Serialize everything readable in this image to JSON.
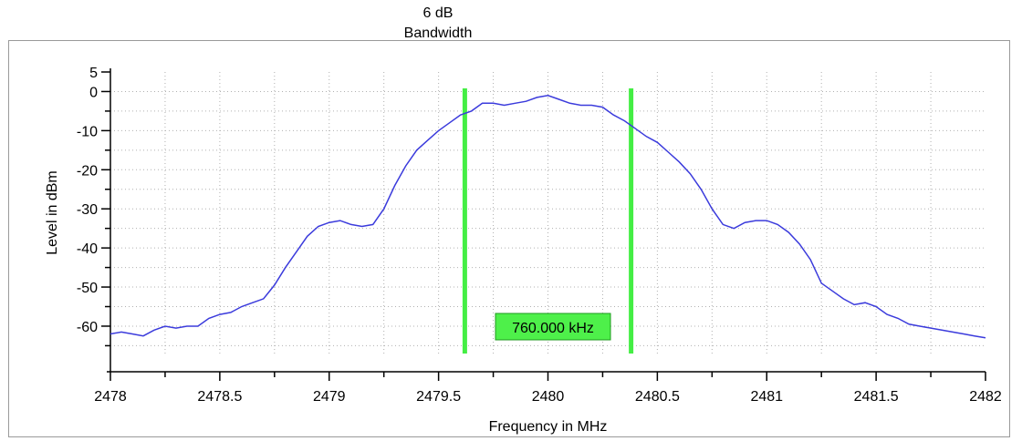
{
  "chart_data": {
    "type": "line",
    "title_line1": "6 dB",
    "title_line2": "Bandwidth",
    "xlabel": "Frequency in MHz",
    "ylabel": "Level in dBm",
    "xlim": [
      2478,
      2482
    ],
    "ylim": [
      -67,
      5
    ],
    "x_ticks": [
      2478,
      2478.5,
      2479,
      2479.5,
      2480,
      2480.5,
      2481,
      2481.5,
      2482
    ],
    "x_tick_labels": [
      "2478",
      "2478.5",
      "2479",
      "2479.5",
      "2480",
      "2480.5",
      "2481",
      "2481.5",
      "2482"
    ],
    "y_ticks": [
      5,
      0,
      -10,
      -20,
      -30,
      -40,
      -50,
      -60
    ],
    "y_tick_labels": [
      "5",
      "0",
      "-10",
      "-20",
      "-30",
      "-40",
      "-50",
      "-60"
    ],
    "grid": true,
    "colors": {
      "trace": "#3b3bdc",
      "marker": "#44ee44",
      "grid": "#b0b0b0"
    },
    "series": [
      {
        "x": [
          2478.0,
          2478.05,
          2478.1,
          2478.15,
          2478.2,
          2478.25,
          2478.3,
          2478.35,
          2478.4,
          2478.45,
          2478.5,
          2478.55,
          2478.6,
          2478.65,
          2478.7,
          2478.75,
          2478.8,
          2478.85,
          2478.9,
          2478.95,
          2479.0,
          2479.05,
          2479.1,
          2479.15,
          2479.2,
          2479.25,
          2479.3,
          2479.35,
          2479.4,
          2479.45,
          2479.5,
          2479.55,
          2479.6,
          2479.65,
          2479.7,
          2479.75,
          2479.8,
          2479.85,
          2479.9,
          2479.95,
          2480.0,
          2480.05,
          2480.1,
          2480.15,
          2480.2,
          2480.25,
          2480.3,
          2480.35,
          2480.4,
          2480.45,
          2480.5,
          2480.55,
          2480.6,
          2480.65,
          2480.7,
          2480.75,
          2480.8,
          2480.85,
          2480.9,
          2480.95,
          2481.0,
          2481.05,
          2481.1,
          2481.15,
          2481.2,
          2481.25,
          2481.3,
          2481.35,
          2481.4,
          2481.45,
          2481.5,
          2481.55,
          2481.6,
          2481.65,
          2481.7,
          2481.75,
          2481.8,
          2481.85,
          2481.9,
          2481.95,
          2482.0
        ],
        "values": [
          -62,
          -61.5,
          -62,
          -62.5,
          -61,
          -60,
          -60.5,
          -60,
          -60,
          -58,
          -57,
          -56.5,
          -55,
          -54,
          -53,
          -49.5,
          -45,
          -41,
          -37,
          -34.5,
          -33.5,
          -33,
          -34,
          -34.5,
          -34,
          -30,
          -24,
          -19,
          -15,
          -12.5,
          -10,
          -8,
          -6,
          -5,
          -3,
          -3,
          -3.5,
          -3,
          -2.5,
          -1.5,
          -1,
          -2,
          -3,
          -3.5,
          -3.5,
          -4,
          -6,
          -7.5,
          -9.5,
          -11.5,
          -13,
          -15.5,
          -18,
          -21,
          -25,
          -30,
          -34,
          -35,
          -33.5,
          -33,
          -33,
          -34,
          -36,
          -39,
          -43,
          -49,
          -51,
          -53,
          -54.5,
          -54,
          -55,
          -57,
          -58,
          -59.5,
          -60,
          -60.5,
          -61,
          -61.5,
          -62,
          -62.5,
          -63
        ]
      }
    ],
    "bandwidth_markers": {
      "lines": [
        2479.62,
        2480.38
      ],
      "label": "760.000 kHz"
    }
  }
}
